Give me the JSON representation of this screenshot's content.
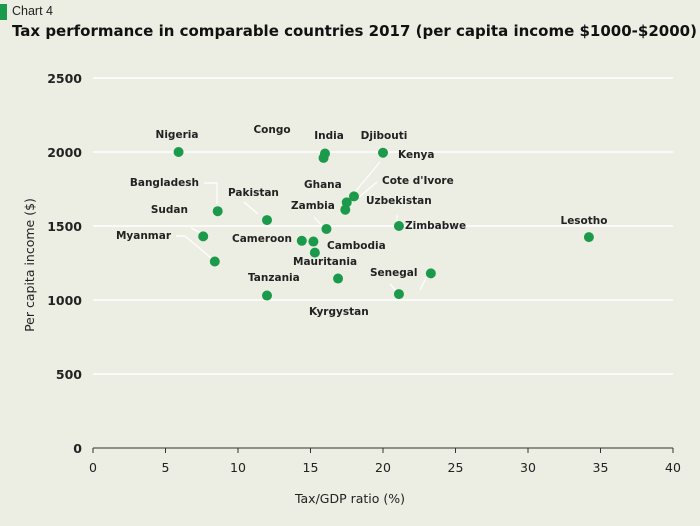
{
  "header": {
    "label": "Chart 4",
    "title": "Tax performance in comparable countries 2017 (per capita income $1000-$2000)"
  },
  "colors": {
    "accent": "#1a9a4a",
    "point": "#1a9a4a",
    "grid": "#ffffff",
    "background": "#eceee3"
  },
  "chart_data": {
    "type": "scatter",
    "title": "Tax performance in comparable countries 2017 (per capita income $1000-$2000)",
    "xlabel": "Tax/GDP ratio (%)",
    "ylabel": "Per capita income ($)",
    "xlim": [
      0,
      40
    ],
    "ylim": [
      0,
      2500
    ],
    "xticks": [
      "0",
      "5",
      "10",
      "15",
      "20",
      "25",
      "30",
      "35",
      "40"
    ],
    "yticks": [
      "0",
      "500",
      "1000",
      "1500",
      "2000",
      "2500"
    ],
    "grid": "horizontal",
    "points": [
      {
        "name": "Nigeria",
        "x": 5.9,
        "y": 2000
      },
      {
        "name": "Congo",
        "x": 16.0,
        "y": 1990
      },
      {
        "name": "India",
        "x": 15.9,
        "y": 1960
      },
      {
        "name": "Djibouti",
        "x": 20.0,
        "y": 1995
      },
      {
        "name": "Kenya",
        "x": 18.0,
        "y": 1700
      },
      {
        "name": "Bangladesh",
        "x": 8.6,
        "y": 1600
      },
      {
        "name": "Pakistan",
        "x": 12.0,
        "y": 1540
      },
      {
        "name": "Ghana",
        "x": 17.5,
        "y": 1660
      },
      {
        "name": "Cote d'Ivore",
        "x": 17.4,
        "y": 1610
      },
      {
        "name": "Uzbekistan",
        "x": 21.1,
        "y": 1500
      },
      {
        "name": "Zambia",
        "x": 16.1,
        "y": 1480
      },
      {
        "name": "Sudan",
        "x": 7.6,
        "y": 1430
      },
      {
        "name": "Cameroon",
        "x": 14.4,
        "y": 1400
      },
      {
        "name": "Cambodia",
        "x": 15.2,
        "y": 1395
      },
      {
        "name": "Mauritania",
        "x": 15.3,
        "y": 1320
      },
      {
        "name": "Myanmar",
        "x": 8.4,
        "y": 1260
      },
      {
        "name": "Zimbabwe",
        "x": 23.3,
        "y": 1180
      },
      {
        "name": "Kyrgystan",
        "x": 16.9,
        "y": 1145
      },
      {
        "name": "Senegal",
        "x": 21.1,
        "y": 1040
      },
      {
        "name": "Tanzania",
        "x": 12.0,
        "y": 1030
      },
      {
        "name": "Lesotho",
        "x": 34.2,
        "y": 1425
      }
    ]
  }
}
